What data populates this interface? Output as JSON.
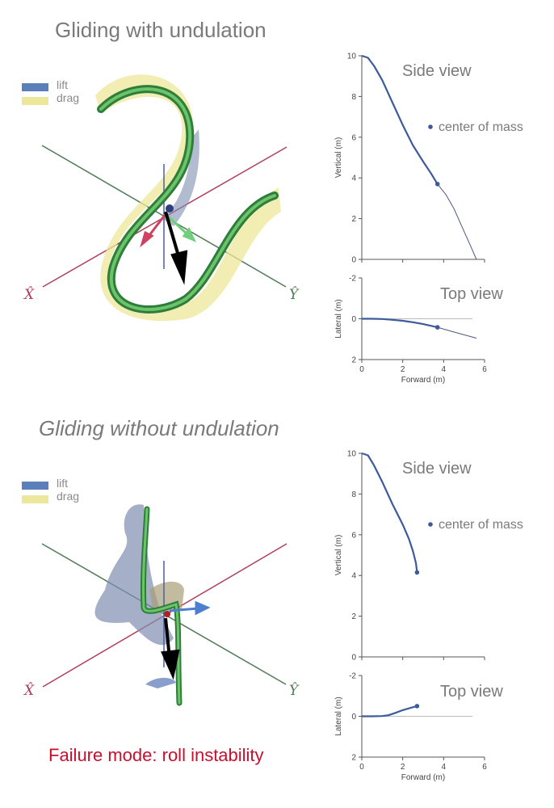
{
  "top_panel": {
    "title": "Gliding with undulation",
    "legend": [
      {
        "label": "lift",
        "color": "#5b7fb8"
      },
      {
        "label": "drag",
        "color": "#ece79a"
      }
    ],
    "axis_labels": {
      "x": "X̂",
      "y": "Ŷ"
    },
    "axis_colors": {
      "x": "#b0405a",
      "y": "#4f7a56"
    }
  },
  "bottom_panel": {
    "title": "Gliding without undulation",
    "legend": [
      {
        "label": "lift",
        "color": "#5b7fb8"
      },
      {
        "label": "drag",
        "color": "#ece79a"
      }
    ],
    "axis_labels": {
      "x": "X̂",
      "y": "Ŷ"
    },
    "axis_colors": {
      "x": "#b0405a",
      "y": "#4f7a56"
    },
    "failure_text": "Failure mode: roll instability",
    "failure_color": "#c8102e"
  },
  "chart_data": [
    {
      "type": "line",
      "panel": "with undulation",
      "title": "Side view",
      "xlabel": "",
      "ylabel": "Vertical (m)",
      "xlim": [
        0,
        6
      ],
      "ylim": [
        0,
        10
      ],
      "xticks": [
        0,
        2,
        4,
        6
      ],
      "yticks": [
        "0",
        "2",
        "4",
        "6",
        "8",
        "10"
      ],
      "legend": "center of mass",
      "series": [
        {
          "x": [
            0,
            0.3,
            0.6,
            1,
            1.5,
            2,
            2.5,
            3,
            3.4,
            3.7
          ],
          "y": [
            10,
            9.9,
            9.5,
            8.8,
            7.7,
            6.6,
            5.6,
            4.8,
            4.2,
            3.7
          ],
          "style": "thick"
        },
        {
          "x": [
            3.7,
            4.1,
            4.5,
            4.9,
            5.3,
            5.6
          ],
          "y": [
            3.7,
            3.2,
            2.5,
            1.6,
            0.7,
            0
          ],
          "style": "thin"
        }
      ],
      "marker": {
        "x": 3.7,
        "y": 3.7
      }
    },
    {
      "type": "line",
      "panel": "with undulation",
      "title": "Top view",
      "xlabel": "Forward (m)",
      "ylabel": "Lateral (m)",
      "xlim": [
        0,
        6
      ],
      "ylim": [
        -2,
        2
      ],
      "y_inverted": true,
      "xticks": [
        "0",
        "2",
        "4",
        "6"
      ],
      "yticks": [
        "-2",
        "0",
        "2"
      ],
      "series": [
        {
          "x": [
            0,
            0.5,
            1,
            1.5,
            2,
            2.5,
            3,
            3.7
          ],
          "y": [
            0,
            0,
            0.01,
            0.05,
            0.1,
            0.17,
            0.26,
            0.42
          ],
          "style": "thick"
        },
        {
          "x": [
            3.7,
            4.5,
            5.6
          ],
          "y": [
            0.42,
            0.65,
            0.95
          ],
          "style": "thin"
        }
      ],
      "marker": {
        "x": 3.7,
        "y": 0.42
      }
    },
    {
      "type": "line",
      "panel": "without undulation",
      "title": "Side view",
      "xlabel": "",
      "ylabel": "Vertical (m)",
      "xlim": [
        0,
        6
      ],
      "ylim": [
        0,
        10
      ],
      "xticks": [
        0,
        2,
        4,
        6
      ],
      "yticks": [
        "0",
        "2",
        "4",
        "6",
        "8",
        "10"
      ],
      "legend": "center of mass",
      "series": [
        {
          "x": [
            0,
            0.3,
            0.6,
            1,
            1.5,
            2,
            2.3,
            2.5,
            2.65,
            2.7
          ],
          "y": [
            10,
            9.9,
            9.4,
            8.6,
            7.5,
            6.5,
            5.8,
            5.2,
            4.6,
            4.15
          ],
          "style": "thick"
        }
      ],
      "marker": {
        "x": 2.7,
        "y": 4.15
      }
    },
    {
      "type": "line",
      "panel": "without undulation",
      "title": "Top view",
      "xlabel": "Forward (m)",
      "ylabel": "Lateral (m)",
      "xlim": [
        0,
        6
      ],
      "ylim": [
        -2,
        2
      ],
      "y_inverted": true,
      "xticks": [
        "0",
        "2",
        "4",
        "6"
      ],
      "yticks": [
        "-2",
        "0",
        "2"
      ],
      "series": [
        {
          "x": [
            0,
            0.5,
            1,
            1.3,
            1.6,
            2,
            2.4,
            2.7
          ],
          "y": [
            0,
            0,
            -0.01,
            -0.05,
            -0.15,
            -0.3,
            -0.42,
            -0.5
          ],
          "style": "thick"
        }
      ],
      "marker": {
        "x": 2.7,
        "y": -0.5
      }
    }
  ]
}
